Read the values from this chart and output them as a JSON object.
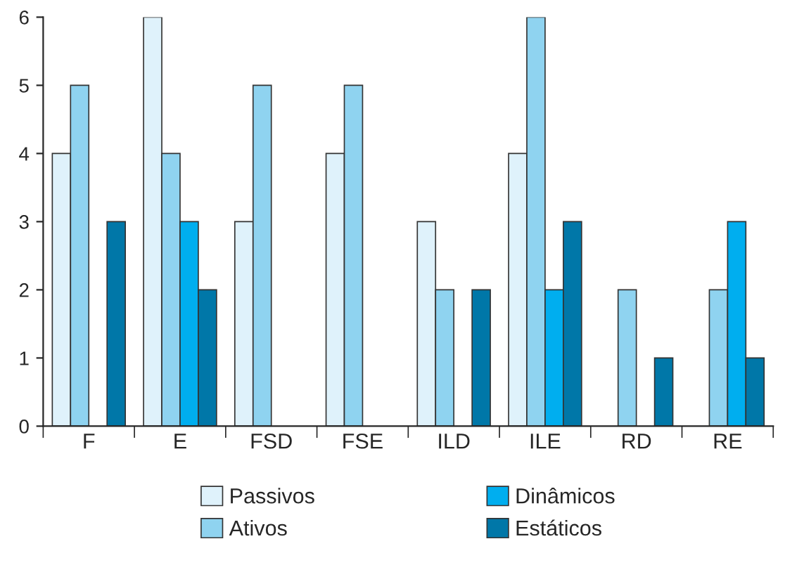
{
  "chart_data": {
    "type": "bar",
    "categories": [
      "F",
      "E",
      "FSD",
      "FSE",
      "ILD",
      "ILE",
      "RD",
      "RE"
    ],
    "series": [
      {
        "name": "Passivos",
        "color": "#dff2fb",
        "values": [
          4,
          6,
          3,
          4,
          3,
          4,
          null,
          null
        ]
      },
      {
        "name": "Ativos",
        "color": "#8fd3f0",
        "values": [
          5,
          4,
          5,
          5,
          2,
          6,
          2,
          2
        ]
      },
      {
        "name": "Dinâmicos",
        "color": "#00aeef",
        "values": [
          null,
          3,
          null,
          null,
          null,
          2,
          null,
          3
        ]
      },
      {
        "name": "Estáticos",
        "color": "#0077a8",
        "values": [
          3,
          2,
          null,
          null,
          2,
          3,
          1,
          1
        ]
      }
    ],
    "ylim": [
      0,
      6
    ],
    "yticks": [
      0,
      1,
      2,
      3,
      4,
      5,
      6
    ],
    "grid": false,
    "legend": "bottom"
  }
}
